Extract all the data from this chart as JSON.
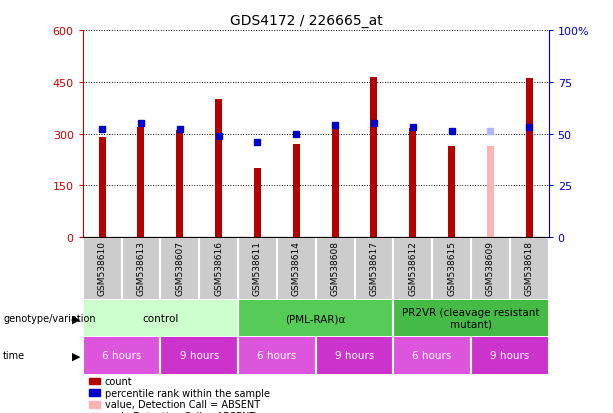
{
  "title": "GDS4172 / 226665_at",
  "samples": [
    "GSM538610",
    "GSM538613",
    "GSM538607",
    "GSM538616",
    "GSM538611",
    "GSM538614",
    "GSM538608",
    "GSM538617",
    "GSM538612",
    "GSM538615",
    "GSM538609",
    "GSM538618"
  ],
  "counts": [
    290,
    320,
    310,
    400,
    200,
    270,
    320,
    465,
    315,
    265,
    0,
    460
  ],
  "ranks": [
    52,
    55,
    52,
    49,
    46,
    50,
    54,
    55,
    53,
    51,
    51,
    53
  ],
  "absent_count": [
    null,
    null,
    null,
    null,
    null,
    null,
    null,
    null,
    null,
    null,
    265,
    null
  ],
  "absent_rank": [
    null,
    null,
    null,
    null,
    null,
    null,
    null,
    null,
    null,
    null,
    51,
    null
  ],
  "bar_color_normal": "#b30000",
  "bar_color_absent": "#ffb3b3",
  "rank_color_normal": "#0000cc",
  "rank_color_absent": "#b3b3ff",
  "ylim_left": [
    0,
    600
  ],
  "ylim_right": [
    0,
    100
  ],
  "yticks_left": [
    0,
    150,
    300,
    450,
    600
  ],
  "yticks_right": [
    0,
    25,
    50,
    75,
    100
  ],
  "ytick_labels_left": [
    "0",
    "150",
    "300",
    "450",
    "600"
  ],
  "ytick_labels_right": [
    "0",
    "25",
    "50",
    "75",
    "100%"
  ],
  "left_axis_color": "#cc0000",
  "right_axis_color": "#0000cc",
  "genotype_groups": [
    {
      "label": "control",
      "start": 0,
      "end": 4,
      "color": "#ccffcc"
    },
    {
      "label": "(PML-RAR)α",
      "start": 4,
      "end": 8,
      "color": "#55cc55"
    },
    {
      "label": "PR2VR (cleavage resistant\nmutant)",
      "start": 8,
      "end": 12,
      "color": "#44bb44"
    }
  ],
  "time_groups": [
    {
      "label": "6 hours",
      "start": 0,
      "end": 2,
      "color": "#dd55dd"
    },
    {
      "label": "9 hours",
      "start": 2,
      "end": 4,
      "color": "#cc33cc"
    },
    {
      "label": "6 hours",
      "start": 4,
      "end": 6,
      "color": "#dd55dd"
    },
    {
      "label": "9 hours",
      "start": 6,
      "end": 8,
      "color": "#cc33cc"
    },
    {
      "label": "6 hours",
      "start": 8,
      "end": 10,
      "color": "#dd55dd"
    },
    {
      "label": "9 hours",
      "start": 10,
      "end": 12,
      "color": "#cc33cc"
    }
  ],
  "legend_items": [
    {
      "label": "count",
      "color": "#b30000"
    },
    {
      "label": "percentile rank within the sample",
      "color": "#0000cc"
    },
    {
      "label": "value, Detection Call = ABSENT",
      "color": "#ffb3b3"
    },
    {
      "label": "rank, Detection Call = ABSENT",
      "color": "#b3b3ff"
    }
  ],
  "bar_width": 0.18,
  "rank_marker_size": 5,
  "sample_col_color": "#cccccc",
  "sample_col_border": "#ffffff",
  "fig_bg": "#ffffff"
}
